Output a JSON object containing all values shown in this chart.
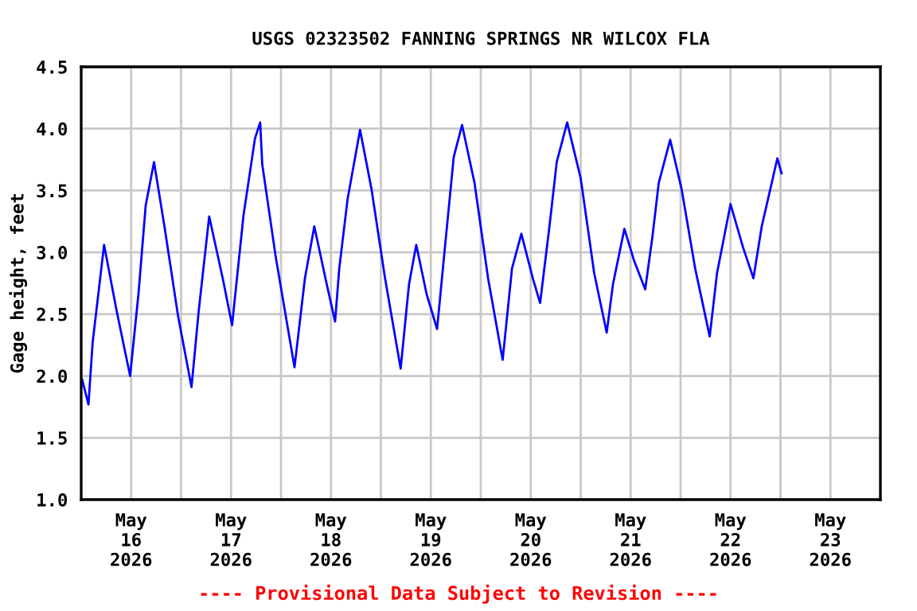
{
  "chart_data": {
    "type": "line",
    "title": "USGS 02323502 FANNING SPRINGS NR WILCOX FLA",
    "ylabel": "Gage height, feet",
    "annotations": [
      "---- Provisional Data Subject to Revision ----"
    ],
    "x": [
      "2026-05-16T00:15",
      "2026-05-16T01:45",
      "2026-05-16T02:45",
      "2026-05-16T05:30",
      "2026-05-16T08:30",
      "2026-05-16T11:45",
      "2026-05-16T13:45",
      "2026-05-16T15:30",
      "2026-05-16T17:30",
      "2026-05-16T20:00",
      "2026-05-16T23:15",
      "2026-05-17T02:30",
      "2026-05-17T04:15",
      "2026-05-17T06:45",
      "2026-05-17T10:00",
      "2026-05-17T12:15",
      "2026-05-17T15:00",
      "2026-05-17T17:45",
      "2026-05-17T19:00",
      "2026-05-17T19:30",
      "2026-05-17T22:45",
      "2026-05-18T03:15",
      "2026-05-18T05:45",
      "2026-05-18T08:00",
      "2026-05-18T11:00",
      "2026-05-18T13:00",
      "2026-05-18T14:00",
      "2026-05-18T16:00",
      "2026-05-18T19:00",
      "2026-05-18T21:45",
      "2026-05-19T01:00",
      "2026-05-19T04:45",
      "2026-05-19T06:45",
      "2026-05-19T08:30",
      "2026-05-19T11:00",
      "2026-05-19T13:30",
      "2026-05-19T15:30",
      "2026-05-19T17:30",
      "2026-05-19T19:30",
      "2026-05-19T22:30",
      "2026-05-20T01:45",
      "2026-05-20T05:15",
      "2026-05-20T07:30",
      "2026-05-20T09:45",
      "2026-05-20T12:30",
      "2026-05-20T14:15",
      "2026-05-20T16:30",
      "2026-05-20T18:15",
      "2026-05-20T20:45",
      "2026-05-21T00:00",
      "2026-05-21T03:15",
      "2026-05-21T06:15",
      "2026-05-21T07:45",
      "2026-05-21T10:30",
      "2026-05-21T12:45",
      "2026-05-21T15:30",
      "2026-05-21T17:15",
      "2026-05-21T18:45",
      "2026-05-21T21:30",
      "2026-05-22T00:15",
      "2026-05-22T03:30",
      "2026-05-22T07:00",
      "2026-05-22T08:45",
      "2026-05-22T12:00",
      "2026-05-22T15:00",
      "2026-05-22T17:30",
      "2026-05-22T19:30",
      "2026-05-22T23:15",
      "2026-05-23T00:15"
    ],
    "series": [
      {
        "color": "#0000ff",
        "values": [
          1.97,
          1.77,
          2.27,
          3.06,
          2.53,
          2.0,
          2.66,
          3.38,
          3.73,
          3.21,
          2.49,
          1.91,
          2.53,
          3.29,
          2.79,
          2.41,
          3.3,
          3.92,
          4.05,
          3.71,
          2.96,
          2.07,
          2.79,
          3.21,
          2.74,
          2.44,
          2.87,
          3.43,
          3.99,
          3.51,
          2.79,
          2.06,
          2.74,
          3.06,
          2.66,
          2.38,
          3.08,
          3.77,
          4.03,
          3.56,
          2.79,
          2.13,
          2.87,
          3.15,
          2.79,
          2.59,
          3.21,
          3.73,
          4.05,
          3.6,
          2.83,
          2.35,
          2.74,
          3.19,
          2.94,
          2.7,
          3.13,
          3.56,
          3.91,
          3.51,
          2.87,
          2.32,
          2.83,
          3.39,
          3.04,
          2.79,
          3.21,
          3.76,
          3.64
        ]
      }
    ],
    "xlim": [
      "2026-05-16T00:00",
      "2026-05-24T00:00"
    ],
    "xticks": [
      {
        "value": "2026-05-16T12:00",
        "label": "May\n16\n2026"
      },
      {
        "value": "2026-05-17T00:00",
        "label": null
      },
      {
        "value": "2026-05-17T12:00",
        "label": "May\n17\n2026"
      },
      {
        "value": "2026-05-18T00:00",
        "label": null
      },
      {
        "value": "2026-05-18T12:00",
        "label": "May\n18\n2026"
      },
      {
        "value": "2026-05-19T00:00",
        "label": null
      },
      {
        "value": "2026-05-19T12:00",
        "label": "May\n19\n2026"
      },
      {
        "value": "2026-05-20T00:00",
        "label": null
      },
      {
        "value": "2026-05-20T12:00",
        "label": "May\n20\n2026"
      },
      {
        "value": "2026-05-21T00:00",
        "label": null
      },
      {
        "value": "2026-05-21T12:00",
        "label": "May\n21\n2026"
      },
      {
        "value": "2026-05-22T00:00",
        "label": null
      },
      {
        "value": "2026-05-22T12:00",
        "label": "May\n22\n2026"
      },
      {
        "value": "2026-05-23T00:00",
        "label": null
      },
      {
        "value": "2026-05-23T12:00",
        "label": "May\n23\n2026"
      }
    ],
    "ylim": [
      1.0,
      4.5
    ],
    "yticks": [
      {
        "value": 1.0,
        "label": "1.0"
      },
      {
        "value": 1.5,
        "label": "1.5"
      },
      {
        "value": 2.0,
        "label": "2.0"
      },
      {
        "value": 2.5,
        "label": "2.5"
      },
      {
        "value": 3.0,
        "label": "3.0"
      },
      {
        "value": 3.5,
        "label": "3.5"
      },
      {
        "value": 4.0,
        "label": "4.0"
      },
      {
        "value": 4.5,
        "label": "4.5"
      }
    ],
    "grid": true
  }
}
